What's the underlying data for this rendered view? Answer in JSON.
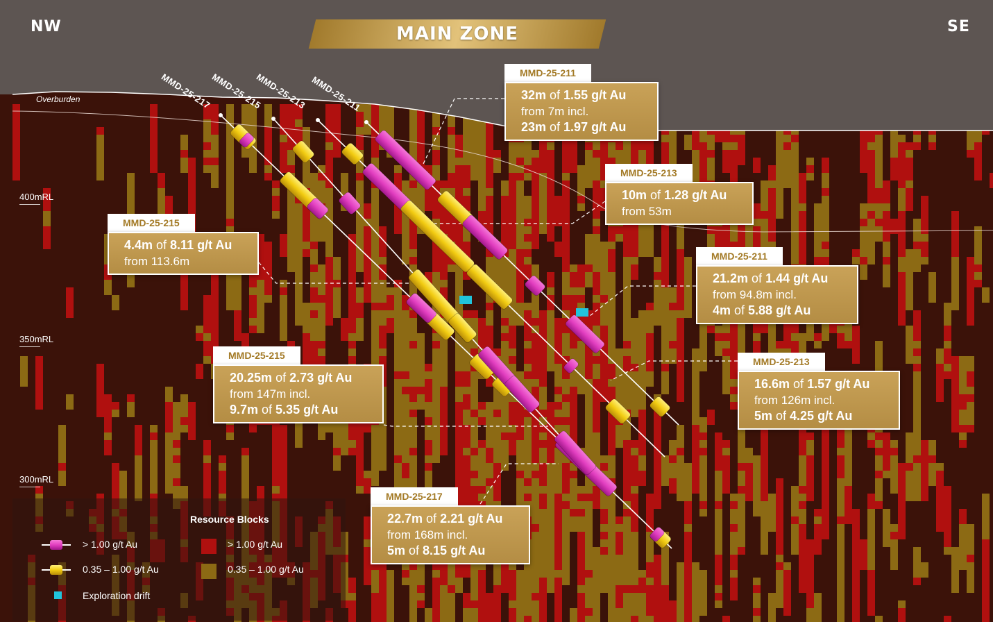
{
  "header": {
    "left_direction": "NW",
    "right_direction": "SE",
    "title": "MAIN ZONE"
  },
  "surface_label": "Overburden",
  "elevation_labels": [
    "400mRL",
    "350mRL",
    "300mRL"
  ],
  "drill_holes": [
    "MMD-25-217",
    "MMD-25-215",
    "MMD-25-213",
    "MMD-25-211"
  ],
  "callouts": [
    {
      "hole": "MMD-25-211",
      "lines": [
        {
          "m": "32m",
          "g": "1.55 g/t Au"
        },
        {
          "t": "from 7m incl."
        },
        {
          "m": "23m",
          "g": "1.97 g/t Au"
        }
      ]
    },
    {
      "hole": "MMD-25-213",
      "lines": [
        {
          "m": "10m",
          "g": "1.28 g/t Au"
        },
        {
          "t": "from 53m"
        }
      ]
    },
    {
      "hole": "MMD-25-215",
      "lines": [
        {
          "m": "4.4m",
          "g": "8.11 g/t Au"
        },
        {
          "t": "from 113.6m"
        }
      ]
    },
    {
      "hole": "MMD-25-211",
      "lines": [
        {
          "m": "21.2m",
          "g": "1.44 g/t Au"
        },
        {
          "t": "from 94.8m incl."
        },
        {
          "m": "4m",
          "g": "5.88 g/t Au"
        }
      ]
    },
    {
      "hole": "MMD-25-215",
      "lines": [
        {
          "m": "20.25m",
          "g": "2.73 g/t Au"
        },
        {
          "t": "from 147m incl."
        },
        {
          "m": "9.7m",
          "g": "5.35 g/t Au"
        }
      ]
    },
    {
      "hole": "MMD-25-213",
      "lines": [
        {
          "m": "16.6m",
          "g": "1.57 g/t Au"
        },
        {
          "t": "from 126m incl."
        },
        {
          "m": "5m",
          "g": "4.25 g/t Au"
        }
      ]
    },
    {
      "hole": "MMD-25-217",
      "lines": [
        {
          "m": "22.7m",
          "g": "2.21 g/t Au"
        },
        {
          "t": "from 168m incl."
        },
        {
          "m": "5m",
          "g": "8.15 g/t Au"
        }
      ]
    }
  ],
  "joiner": "of",
  "legend": {
    "high_grade": "> 1.00 g/t Au",
    "low_grade": "0.35 – 1.00 g/t Au",
    "drift": "Exploration drift",
    "blocks_title": "Resource Blocks",
    "blocks_high": "> 1.00 g/t Au",
    "blocks_low": "0.35 – 1.00 g/t Au"
  },
  "colors": {
    "background": "#3b1209",
    "sky": "#5d5552",
    "block_high": "#b0100f",
    "block_low": "#8c6a14",
    "intercept_high": "#e23ec0",
    "intercept_low": "#f2cc12",
    "drift": "#21c4db",
    "callout_fill": "#c29a4f",
    "callout_tab_text": "#a37a26"
  }
}
